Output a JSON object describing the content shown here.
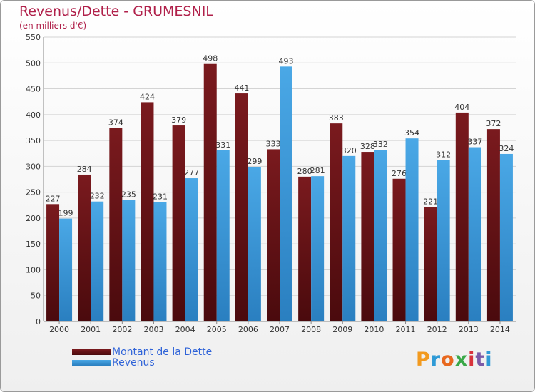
{
  "title": "Revenus/Dette - GRUMESNIL",
  "subtitle": "(en milliers d'€)",
  "legend": {
    "debt_label": "Montant de la Dette",
    "revenue_label": "Revenus"
  },
  "logo": {
    "letters": [
      "P",
      "r",
      "o",
      "x",
      "i",
      "t",
      "i"
    ],
    "colors": [
      "#f29a1f",
      "#2e9ad6",
      "#e8681e",
      "#3aa848",
      "#d8323c",
      "#7b5aa8",
      "#2e9ad6"
    ]
  },
  "colors": {
    "debt": "#7a1a1e",
    "debt_dark": "#4a0a0d",
    "revenue": "#4aa8e6",
    "revenue_dark": "#2a7fc0",
    "grid": "#d4d4d4"
  },
  "chart_data": {
    "type": "bar",
    "title": "Revenus/Dette - GRUMESNIL",
    "ylabel": "(en milliers d'€)",
    "xlabel": "",
    "ylim": [
      0,
      550
    ],
    "yticks": [
      0,
      50,
      100,
      150,
      200,
      250,
      300,
      350,
      400,
      450,
      500,
      550
    ],
    "grid": true,
    "legend": "bottom-left",
    "categories": [
      "2000",
      "2001",
      "2002",
      "2003",
      "2004",
      "2005",
      "2006",
      "2007",
      "2008",
      "2009",
      "2010",
      "2011",
      "2012",
      "2013",
      "2014"
    ],
    "series": [
      {
        "name": "Montant de la Dette",
        "values": [
          227,
          284,
          374,
          424,
          379,
          498,
          441,
          333,
          280,
          383,
          328,
          276,
          221,
          404,
          372
        ]
      },
      {
        "name": "Revenus",
        "values": [
          199,
          232,
          235,
          231,
          277,
          331,
          299,
          493,
          281,
          320,
          332,
          354,
          312,
          337,
          324
        ]
      }
    ]
  }
}
